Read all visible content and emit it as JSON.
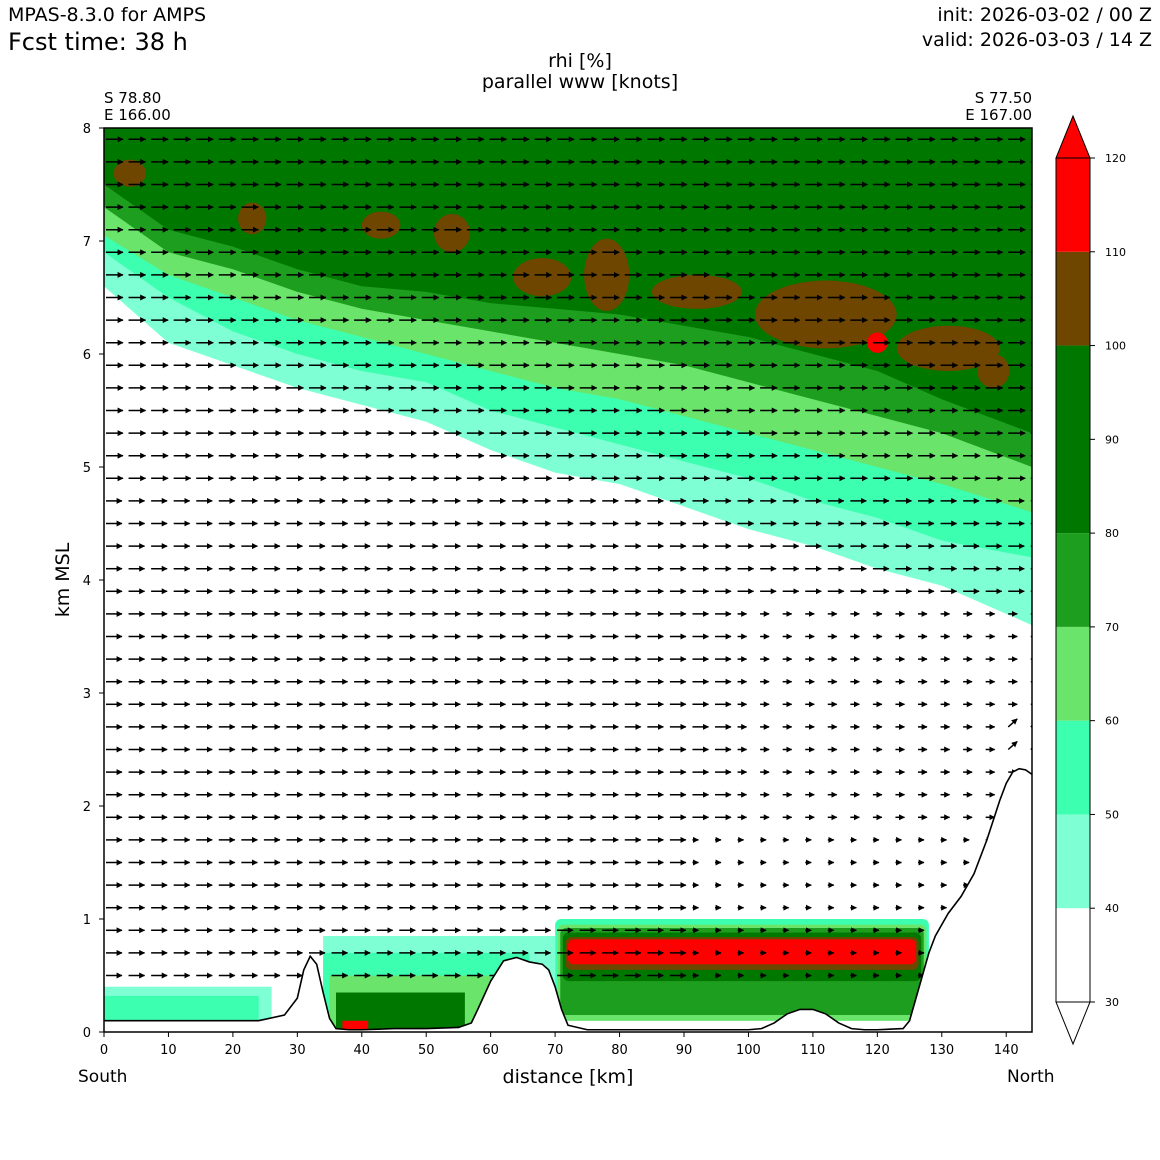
{
  "header": {
    "model": "MPAS-8.3.0 for AMPS",
    "fcst_time": "Fcst time:   38 h",
    "init": "init: 2026-03-02 / 00 Z",
    "valid": "valid: 2026-03-03 / 14 Z"
  },
  "chart_data": {
    "type": "heatmap",
    "title": "rhi [%]",
    "subtitle": "parallel www [knots]",
    "xlabel": "distance [km]",
    "ylabel": "km MSL",
    "xlim": [
      0,
      144
    ],
    "ylim": [
      0,
      8
    ],
    "xticks": [
      0,
      10,
      20,
      30,
      40,
      50,
      60,
      70,
      80,
      90,
      100,
      110,
      120,
      130,
      140
    ],
    "yticks": [
      0,
      1,
      2,
      3,
      4,
      5,
      6,
      7,
      8
    ],
    "endpoints": {
      "start": {
        "lat": "S 78.80",
        "lon": "E 166.00",
        "dir": "South"
      },
      "end": {
        "lat": "S 77.50",
        "lon": "E 167.00",
        "dir": "North"
      }
    },
    "colorbar": {
      "levels": [
        30,
        40,
        50,
        60,
        70,
        80,
        90,
        100,
        110,
        120
      ],
      "bins": [
        {
          "from": 30,
          "to": 40,
          "color": "#ffffff"
        },
        {
          "from": 40,
          "to": 50,
          "color": "#7fffd4"
        },
        {
          "from": 50,
          "to": 60,
          "color": "#3cffb0"
        },
        {
          "from": 60,
          "to": 70,
          "color": "#6ae46a"
        },
        {
          "from": 70,
          "to": 80,
          "color": "#1e9e1e"
        },
        {
          "from": 80,
          "to": 100,
          "color": "#007800"
        },
        {
          "from": 100,
          "to": 110,
          "color": "#6e4600"
        },
        {
          "from": 110,
          "to": 120,
          "color": "#ff0000"
        }
      ],
      "extend": "both"
    },
    "terrain": {
      "x": [
        0,
        24,
        28,
        30,
        31,
        32,
        33,
        34,
        35,
        36,
        38,
        40,
        45,
        50,
        55,
        57,
        58,
        60,
        62,
        64,
        66,
        68,
        69,
        70,
        71,
        72,
        75,
        80,
        90,
        100,
        102,
        104,
        106,
        108,
        110,
        112,
        114,
        116,
        118,
        120,
        124,
        125,
        126,
        127,
        128,
        129,
        130,
        131,
        133,
        135,
        137,
        139,
        140,
        141,
        142,
        143,
        144
      ],
      "y": [
        0.1,
        0.1,
        0.15,
        0.3,
        0.55,
        0.67,
        0.6,
        0.35,
        0.12,
        0.03,
        0.02,
        0.02,
        0.03,
        0.03,
        0.04,
        0.08,
        0.2,
        0.45,
        0.63,
        0.66,
        0.62,
        0.6,
        0.55,
        0.4,
        0.2,
        0.06,
        0.02,
        0.02,
        0.02,
        0.02,
        0.03,
        0.08,
        0.16,
        0.2,
        0.2,
        0.16,
        0.08,
        0.03,
        0.02,
        0.02,
        0.03,
        0.1,
        0.3,
        0.5,
        0.7,
        0.85,
        0.95,
        1.05,
        1.2,
        1.4,
        1.7,
        2.05,
        2.2,
        2.3,
        2.33,
        2.32,
        2.28
      ]
    },
    "contours": [
      {
        "level": 40,
        "color": "#7fffd4",
        "top": {
          "x": [
            0,
            10,
            20,
            30,
            40,
            50,
            60,
            70,
            80,
            90,
            100,
            110,
            120,
            130,
            144
          ],
          "y": [
            6.6,
            6.1,
            5.9,
            5.7,
            5.55,
            5.4,
            5.15,
            4.95,
            4.85,
            4.65,
            4.45,
            4.3,
            4.1,
            3.95,
            3.6
          ]
        }
      },
      {
        "level": 50,
        "color": "#3cffb0",
        "top": {
          "x": [
            0,
            10,
            20,
            30,
            40,
            50,
            60,
            70,
            80,
            90,
            100,
            110,
            120,
            130,
            144
          ],
          "y": [
            6.9,
            6.5,
            6.2,
            6.0,
            5.85,
            5.75,
            5.5,
            5.35,
            5.2,
            5.05,
            4.9,
            4.7,
            4.55,
            4.35,
            4.2
          ]
        }
      },
      {
        "level": 60,
        "color": "#6ae46a",
        "top": {
          "x": [
            0,
            10,
            20,
            30,
            40,
            50,
            60,
            70,
            80,
            90,
            100,
            110,
            120,
            130,
            144
          ],
          "y": [
            7.05,
            6.7,
            6.5,
            6.3,
            6.15,
            6.0,
            5.85,
            5.7,
            5.6,
            5.45,
            5.3,
            5.15,
            5.0,
            4.85,
            4.6
          ]
        }
      },
      {
        "level": 70,
        "color": "#1e9e1e",
        "top": {
          "x": [
            0,
            10,
            20,
            30,
            40,
            50,
            60,
            70,
            80,
            90,
            100,
            110,
            120,
            130,
            144
          ],
          "y": [
            7.3,
            6.9,
            6.75,
            6.55,
            6.4,
            6.3,
            6.2,
            6.1,
            6.0,
            5.9,
            5.75,
            5.6,
            5.45,
            5.3,
            5.0
          ]
        }
      },
      {
        "level": 80,
        "color": "#007800",
        "top": {
          "x": [
            0,
            10,
            20,
            30,
            40,
            50,
            60,
            70,
            80,
            90,
            100,
            110,
            120,
            130,
            144
          ],
          "y": [
            7.5,
            7.1,
            6.95,
            6.75,
            6.6,
            6.55,
            6.45,
            6.4,
            6.35,
            6.25,
            6.15,
            6.0,
            5.85,
            5.6,
            5.3
          ]
        }
      }
    ],
    "ice_patches": [
      {
        "cx": 4,
        "cy": 7.6,
        "rx": 2.5,
        "ry": 0.12
      },
      {
        "cx": 23,
        "cy": 7.2,
        "rx": 2.2,
        "ry": 0.14
      },
      {
        "cx": 43,
        "cy": 7.14,
        "rx": 3,
        "ry": 0.12
      },
      {
        "cx": 54,
        "cy": 7.07,
        "rx": 2.8,
        "ry": 0.17
      },
      {
        "cx": 68,
        "cy": 6.68,
        "rx": 4.5,
        "ry": 0.17
      },
      {
        "cx": 78,
        "cy": 6.7,
        "rx": 3.5,
        "ry": 0.32
      },
      {
        "cx": 92,
        "cy": 6.55,
        "rx": 7,
        "ry": 0.15
      },
      {
        "cx": 112,
        "cy": 6.35,
        "rx": 11,
        "ry": 0.3
      },
      {
        "cx": 131,
        "cy": 6.05,
        "rx": 8,
        "ry": 0.2
      },
      {
        "cx": 138,
        "cy": 5.85,
        "rx": 2.5,
        "ry": 0.15
      }
    ],
    "red_patches": [
      {
        "cx": 120,
        "cy": 6.1,
        "rx": 1.6,
        "ry": 0.09
      }
    ],
    "lowlevel_cloud": {
      "x0": 70,
      "x1": 128,
      "bands": [
        {
          "color": "#3cffb0",
          "bottom": 0.1,
          "top": 1.0
        },
        {
          "color": "#6ae46a",
          "bottom": 0.1,
          "top": 0.95
        },
        {
          "color": "#1e9e1e",
          "bottom": 0.15,
          "top": 0.92
        },
        {
          "color": "#007800",
          "bottom": 0.45,
          "top": 0.88
        },
        {
          "color": "#6e4600",
          "bottom": 0.55,
          "top": 0.84
        },
        {
          "color": "#ff0000",
          "bottom": 0.6,
          "top": 0.82
        }
      ]
    },
    "wind": {
      "x_spacing_km": 3.5,
      "levels_km": [
        0.5,
        0.7,
        0.9,
        1.1,
        1.3,
        1.5,
        1.7,
        1.9,
        2.1,
        2.3,
        2.5,
        2.7,
        2.9,
        3.1,
        3.3,
        3.5,
        3.7,
        3.9,
        4.1,
        4.3,
        4.5,
        4.7,
        4.9,
        5.1,
        5.3,
        5.5,
        5.7,
        5.9,
        6.1,
        6.3,
        6.5,
        6.7,
        6.9,
        7.1,
        7.3,
        7.5,
        7.7,
        7.9
      ]
    }
  }
}
